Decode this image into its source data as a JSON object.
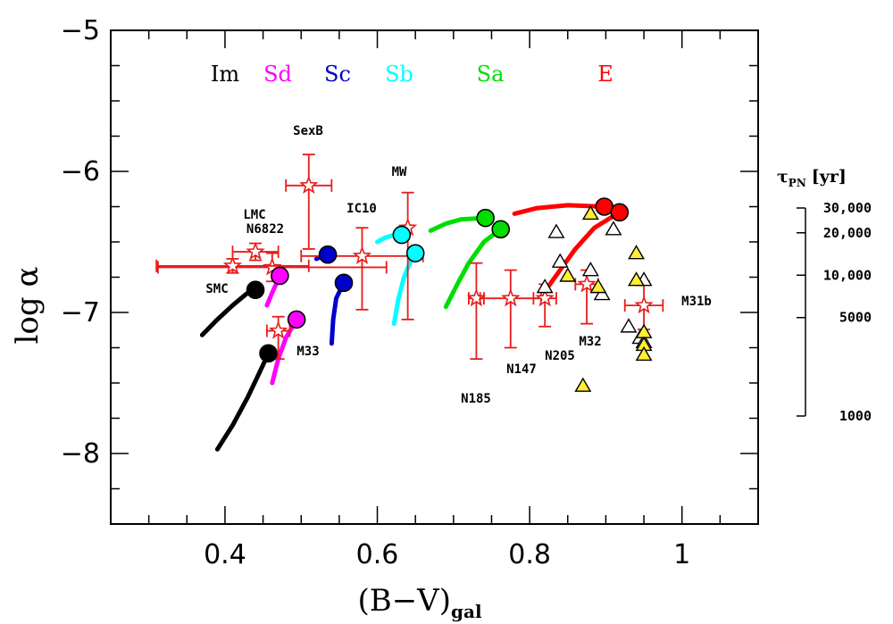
{
  "chart_data": {
    "type": "scatter",
    "xlabel": "(B−V)",
    "xlabel_sub": "gal",
    "ylabel": "log α",
    "xlim": [
      0.25,
      1.1
    ],
    "ylim": [
      -8.5,
      -5
    ],
    "xticks": [
      0.4,
      0.6,
      0.8,
      1
    ],
    "xtick_labels": [
      "0.4",
      "0.6",
      "0.8",
      "1"
    ],
    "yticks": [
      -5,
      -6,
      -7,
      -8
    ],
    "ytick_labels": [
      "−5",
      "−6",
      "−7",
      "−8"
    ],
    "x_minor_step": 0.05,
    "y_minor_step": 0.25,
    "morph_types": [
      {
        "label": "Im",
        "color": "#000000"
      },
      {
        "label": "Sd",
        "color": "#ff00ff"
      },
      {
        "label": "Sc",
        "color": "#0000cc"
      },
      {
        "label": "Sb",
        "color": "#00ffff"
      },
      {
        "label": "Sa",
        "color": "#00dd00"
      },
      {
        "label": "E",
        "color": "#ff0000"
      }
    ],
    "model_tracks": [
      {
        "type": "Im",
        "color": "#000000",
        "points": [
          [
            0.37,
            -7.16
          ],
          [
            0.39,
            -7.05
          ],
          [
            0.41,
            -6.95
          ],
          [
            0.43,
            -6.86
          ],
          [
            0.44,
            -6.84
          ]
        ]
      },
      {
        "type": "Im",
        "color": "#000000",
        "points": [
          [
            0.39,
            -7.97
          ],
          [
            0.41,
            -7.8
          ],
          [
            0.43,
            -7.6
          ],
          [
            0.445,
            -7.43
          ],
          [
            0.457,
            -7.29
          ]
        ]
      },
      {
        "type": "Sd",
        "color": "#ff00ff",
        "points": [
          [
            0.455,
            -6.95
          ],
          [
            0.462,
            -6.86
          ],
          [
            0.472,
            -6.74
          ]
        ]
      },
      {
        "type": "Sd",
        "color": "#ff00ff",
        "points": [
          [
            0.462,
            -7.5
          ],
          [
            0.47,
            -7.33
          ],
          [
            0.48,
            -7.18
          ],
          [
            0.494,
            -7.05
          ]
        ]
      },
      {
        "type": "Sc",
        "color": "#0000cc",
        "points": [
          [
            0.52,
            -6.62
          ],
          [
            0.528,
            -6.6
          ],
          [
            0.535,
            -6.59
          ]
        ]
      },
      {
        "type": "Sc",
        "color": "#0000cc",
        "points": [
          [
            0.54,
            -7.22
          ],
          [
            0.542,
            -7.05
          ],
          [
            0.546,
            -6.9
          ],
          [
            0.556,
            -6.79
          ]
        ]
      },
      {
        "type": "Sb",
        "color": "#00ffff",
        "points": [
          [
            0.6,
            -6.5
          ],
          [
            0.61,
            -6.47
          ],
          [
            0.622,
            -6.45
          ],
          [
            0.632,
            -6.45
          ]
        ]
      },
      {
        "type": "Sb",
        "color": "#00ffff",
        "points": [
          [
            0.622,
            -7.08
          ],
          [
            0.627,
            -6.92
          ],
          [
            0.635,
            -6.75
          ],
          [
            0.645,
            -6.62
          ],
          [
            0.65,
            -6.58
          ]
        ]
      },
      {
        "type": "Sa",
        "color": "#00dd00",
        "points": [
          [
            0.67,
            -6.42
          ],
          [
            0.69,
            -6.37
          ],
          [
            0.71,
            -6.34
          ],
          [
            0.742,
            -6.33
          ]
        ]
      },
      {
        "type": "Sa",
        "color": "#00dd00",
        "points": [
          [
            0.69,
            -6.96
          ],
          [
            0.705,
            -6.8
          ],
          [
            0.72,
            -6.65
          ],
          [
            0.74,
            -6.5
          ],
          [
            0.762,
            -6.41
          ]
        ]
      },
      {
        "type": "E",
        "color": "#ff0000",
        "points": [
          [
            0.78,
            -6.3
          ],
          [
            0.81,
            -6.26
          ],
          [
            0.85,
            -6.24
          ],
          [
            0.898,
            -6.25
          ]
        ]
      },
      {
        "type": "E",
        "color": "#ff0000",
        "points": [
          [
            0.82,
            -6.85
          ],
          [
            0.84,
            -6.7
          ],
          [
            0.86,
            -6.55
          ],
          [
            0.885,
            -6.4
          ],
          [
            0.918,
            -6.29
          ]
        ]
      }
    ],
    "model_endpoints": [
      {
        "type": "Im",
        "color": "#000000",
        "x": 0.44,
        "y": -6.84
      },
      {
        "type": "Im",
        "color": "#000000",
        "x": 0.457,
        "y": -7.29
      },
      {
        "type": "Sd",
        "color": "#ff00ff",
        "x": 0.472,
        "y": -6.74
      },
      {
        "type": "Sd",
        "color": "#ff00ff",
        "x": 0.494,
        "y": -7.05
      },
      {
        "type": "Sc",
        "color": "#0000cc",
        "x": 0.535,
        "y": -6.59
      },
      {
        "type": "Sc",
        "color": "#0000cc",
        "x": 0.556,
        "y": -6.79
      },
      {
        "type": "Sb",
        "color": "#00ffff",
        "x": 0.632,
        "y": -6.45
      },
      {
        "type": "Sb",
        "color": "#00ffff",
        "x": 0.65,
        "y": -6.58
      },
      {
        "type": "Sa",
        "color": "#00dd00",
        "x": 0.742,
        "y": -6.33
      },
      {
        "type": "Sa",
        "color": "#00dd00",
        "x": 0.762,
        "y": -6.41
      },
      {
        "type": "E",
        "color": "#ff0000",
        "x": 0.898,
        "y": -6.25
      },
      {
        "type": "E",
        "color": "#ff0000",
        "x": 0.918,
        "y": -6.29
      }
    ],
    "observed": [
      {
        "name": "SexB",
        "x": 0.51,
        "y": -6.1,
        "xerr": 0.03,
        "yerr": [
          0.45,
          0.22
        ]
      },
      {
        "name": "MW",
        "x": 0.64,
        "y": -6.4,
        "xerr": 0.0,
        "yerr": [
          0.65,
          0.25
        ]
      },
      {
        "name": "IC10",
        "x": 0.58,
        "y": -6.6,
        "xerr": 0.08,
        "yerr": [
          0.38,
          0.2
        ]
      },
      {
        "name": "LMC",
        "x": 0.44,
        "y": -6.57,
        "xerr": 0.03,
        "yerr": [
          0.06,
          0.06
        ]
      },
      {
        "name": "N6822",
        "x": 0.462,
        "y": -6.68,
        "xerr": 0.15,
        "yerr": [
          0.1,
          0.1
        ]
      },
      {
        "name": "SMC",
        "x": 0.41,
        "y": -6.67,
        "xerr": 0.1,
        "yerr": [
          0.05,
          0.05
        ]
      },
      {
        "name": "M33",
        "x": 0.47,
        "y": -7.13,
        "xerr": 0.015,
        "yerr": [
          0.2,
          0.1
        ]
      },
      {
        "name": "N185",
        "x": 0.73,
        "y": -6.9,
        "xerr": 0.01,
        "yerr": [
          0.43,
          0.25
        ]
      },
      {
        "name": "N147",
        "x": 0.775,
        "y": -6.9,
        "xerr": 0.04,
        "yerr": [
          0.35,
          0.2
        ]
      },
      {
        "name": "N205",
        "x": 0.82,
        "y": -6.9,
        "xerr": 0.015,
        "yerr": [
          0.2,
          0.1
        ]
      },
      {
        "name": "M32",
        "x": 0.875,
        "y": -6.8,
        "xerr": 0.015,
        "yerr": [
          0.28,
          0.1
        ]
      },
      {
        "name": "M31b",
        "x": 0.95,
        "y": -6.95,
        "xerr": 0.025,
        "yerr": [
          0.17,
          0.17
        ]
      }
    ],
    "triangles_open": [
      [
        0.82,
        -6.82
      ],
      [
        0.835,
        -6.43
      ],
      [
        0.84,
        -6.64
      ],
      [
        0.88,
        -6.7
      ],
      [
        0.895,
        -6.87
      ],
      [
        0.91,
        -6.41
      ],
      [
        0.93,
        -7.1
      ],
      [
        0.945,
        -7.18
      ],
      [
        0.95,
        -6.77
      ],
      [
        0.95,
        -7.21
      ]
    ],
    "triangles_yellow": [
      [
        0.85,
        -6.74
      ],
      [
        0.87,
        -7.52
      ],
      [
        0.88,
        -6.3
      ],
      [
        0.89,
        -6.82
      ],
      [
        0.94,
        -6.58
      ],
      [
        0.94,
        -6.77
      ],
      [
        0.95,
        -7.14
      ],
      [
        0.95,
        -7.23
      ],
      [
        0.95,
        -7.3
      ]
    ],
    "tau_scale": {
      "title": "τ",
      "title_sub": "PN",
      "title_unit": "[yr]",
      "ticks": [
        {
          "label": "30,000",
          "value": 30000
        },
        {
          "label": "20,000",
          "value": 20000
        },
        {
          "label": "10,000",
          "value": 10000
        },
        {
          "label": "5000",
          "value": 5000
        },
        {
          "label": "1000",
          "value": 1000
        }
      ]
    }
  }
}
